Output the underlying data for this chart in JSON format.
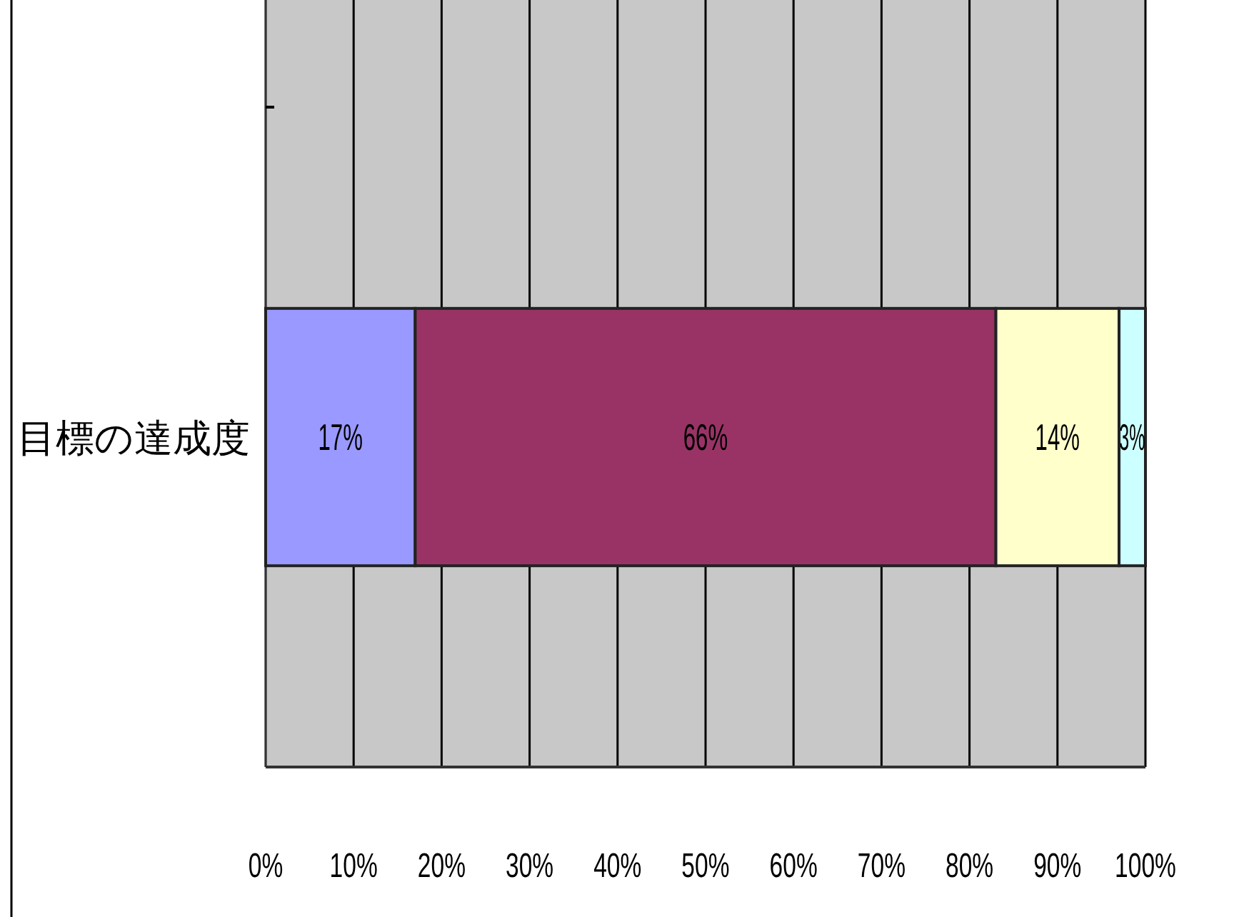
{
  "chart_data": {
    "type": "bar",
    "orientation": "horizontal",
    "stacked": true,
    "categories": [
      "目標の達成度"
    ],
    "series": [
      {
        "color": "#9999ff",
        "values": [
          17
        ],
        "value_labels": [
          "17%"
        ]
      },
      {
        "color": "#993366",
        "values": [
          66
        ],
        "value_labels": [
          "66%"
        ]
      },
      {
        "color": "#ffffcc",
        "values": [
          14
        ],
        "value_labels": [
          "14%"
        ]
      },
      {
        "color": "#ccffff",
        "values": [
          3
        ],
        "value_labels": [
          "3%"
        ]
      }
    ],
    "xlim": [
      0,
      100
    ],
    "xticks": [
      {
        "value": 0,
        "label": "0%"
      },
      {
        "value": 10,
        "label": "10%"
      },
      {
        "value": 20,
        "label": "20%"
      },
      {
        "value": 30,
        "label": "30%"
      },
      {
        "value": 40,
        "label": "40%"
      },
      {
        "value": 50,
        "label": "50%"
      },
      {
        "value": 60,
        "label": "60%"
      },
      {
        "value": 70,
        "label": "70%"
      },
      {
        "value": 80,
        "label": "80%"
      },
      {
        "value": 90,
        "label": "90%"
      },
      {
        "value": 100,
        "label": "100%"
      }
    ],
    "grid": "x"
  }
}
